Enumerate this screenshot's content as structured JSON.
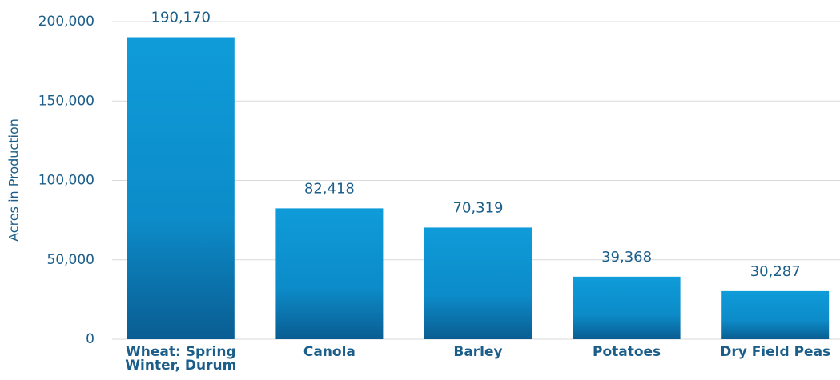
{
  "chart_data": {
    "type": "bar",
    "y_label": "Acres in Production",
    "categories": [
      "Wheat: Spring\nWinter, Durum",
      "Canola",
      "Barley",
      "Potatoes",
      "Dry Field Peas"
    ],
    "values": [
      190170,
      82418,
      70319,
      39368,
      30287
    ],
    "value_labels": [
      "190,170",
      "82,418",
      "70,319",
      "39,368",
      "30,287"
    ],
    "color": "#0f9bd9",
    "ylim": [
      0,
      200000
    ],
    "yticks": [
      0,
      {
        "value": 50000,
        "label": "50,000"
      },
      {
        "value": 100000,
        "label": "100,000"
      },
      {
        "value": 150000,
        "label": "150,000"
      },
      {
        "value": 200000,
        "label": "200,000"
      }
    ],
    "grid": true
  }
}
